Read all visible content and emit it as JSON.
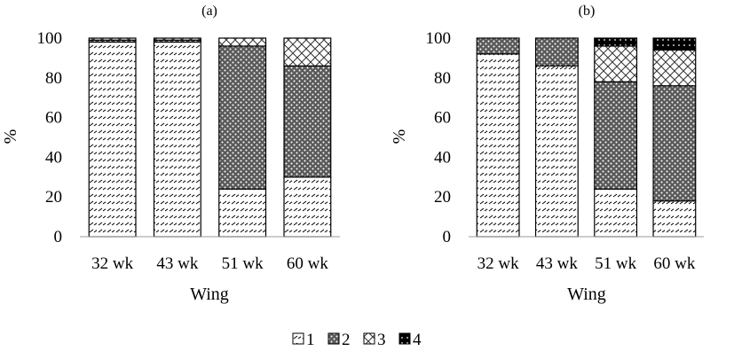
{
  "chart_data": [
    {
      "type": "bar",
      "stacked": true,
      "title": "(a)",
      "xlabel": "Wing",
      "ylabel": "%",
      "ylim": [
        0,
        100
      ],
      "yticks": [
        "0",
        "20",
        "40",
        "60",
        "80",
        "100"
      ],
      "categories": [
        "32 wk",
        "43 wk",
        "51 wk",
        "60 wk"
      ],
      "series": [
        {
          "name": "1",
          "values": [
            98,
            98,
            24,
            30
          ]
        },
        {
          "name": "2",
          "values": [
            1,
            1,
            72,
            56
          ]
        },
        {
          "name": "3",
          "values": [
            1,
            1,
            4,
            14
          ]
        },
        {
          "name": "4",
          "values": [
            0,
            0,
            0,
            0
          ]
        }
      ]
    },
    {
      "type": "bar",
      "stacked": true,
      "title": "(b)",
      "xlabel": "Wing",
      "ylabel": "%",
      "ylim": [
        0,
        100
      ],
      "yticks": [
        "0",
        "20",
        "40",
        "60",
        "80",
        "100"
      ],
      "categories": [
        "32 wk",
        "43 wk",
        "51 wk",
        "60 wk"
      ],
      "series": [
        {
          "name": "1",
          "values": [
            92,
            86,
            24,
            18
          ]
        },
        {
          "name": "2",
          "values": [
            8,
            14,
            54,
            58
          ]
        },
        {
          "name": "3",
          "values": [
            0,
            0,
            18,
            18
          ]
        },
        {
          "name": "4",
          "values": [
            0,
            0,
            4,
            6
          ]
        }
      ]
    }
  ],
  "legend": {
    "position": "bottom",
    "items": [
      {
        "label": "1",
        "pattern": "diagonal-dash"
      },
      {
        "label": "2",
        "pattern": "dense-dots"
      },
      {
        "label": "3",
        "pattern": "crosshatch"
      },
      {
        "label": "4",
        "pattern": "solid-black"
      }
    ]
  }
}
